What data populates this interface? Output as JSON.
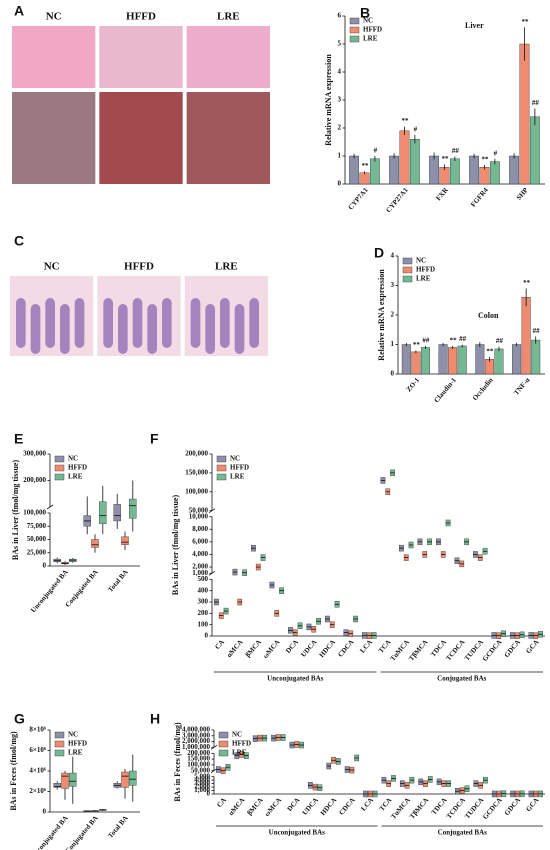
{
  "chart_data": [
    {
      "type": "image",
      "label": "A",
      "columns": [
        "NC",
        "HFFD",
        "LRE"
      ]
    },
    {
      "type": "bar",
      "label": "B",
      "title": "Liver",
      "ylabel": "Relative mRNA expression",
      "categories": [
        "CYP7A1",
        "CYP27A1",
        "FXR",
        "FGFR4",
        "SHP"
      ],
      "ylim": [
        0,
        6
      ],
      "yticks": [
        0,
        1,
        2,
        3,
        4,
        5,
        6
      ],
      "series": [
        {
          "name": "NC",
          "color": "#8e8fa8",
          "values": [
            1,
            1,
            1,
            1,
            1
          ],
          "errors": [
            0.08,
            0.1,
            0.12,
            0.08,
            0.1
          ],
          "annotations": [
            null,
            null,
            null,
            null,
            null
          ]
        },
        {
          "name": "HFFD",
          "color": "#ef8b70",
          "values": [
            0.4,
            1.9,
            0.6,
            0.6,
            5.0
          ],
          "errors": [
            0.05,
            0.15,
            0.1,
            0.08,
            0.6
          ],
          "annotations": [
            "**",
            "**",
            "**",
            "**",
            "**"
          ]
        },
        {
          "name": "LRE",
          "color": "#74b994",
          "values": [
            0.9,
            1.6,
            0.9,
            0.8,
            2.4
          ],
          "errors": [
            0.1,
            0.15,
            0.08,
            0.1,
            0.3
          ],
          "annotations": [
            "#",
            "#",
            "##",
            "#",
            "##"
          ]
        }
      ]
    },
    {
      "type": "image",
      "label": "C",
      "columns": [
        "NC",
        "HFFD",
        "LRE"
      ]
    },
    {
      "type": "bar",
      "label": "D",
      "title": "Colon",
      "ylabel": "Relative mRNA expression",
      "categories": [
        "ZO-1",
        "Claudin-1",
        "Occludin",
        "TNF-α"
      ],
      "ylim": [
        0,
        4
      ],
      "yticks": [
        0,
        1,
        2,
        3,
        4
      ],
      "series": [
        {
          "name": "NC",
          "color": "#8e8fa8",
          "values": [
            1,
            1,
            1,
            1
          ],
          "errors": [
            0.05,
            0.05,
            0.08,
            0.06
          ],
          "annotations": [
            null,
            null,
            null,
            null
          ]
        },
        {
          "name": "HFFD",
          "color": "#ef8b70",
          "values": [
            0.75,
            0.9,
            0.5,
            2.6
          ],
          "errors": [
            0.05,
            0.05,
            0.08,
            0.3
          ],
          "annotations": [
            "**",
            "**",
            "**",
            "**"
          ]
        },
        {
          "name": "LRE",
          "color": "#74b994",
          "values": [
            0.9,
            0.95,
            0.85,
            1.15
          ],
          "errors": [
            0.05,
            0.05,
            0.08,
            0.12
          ],
          "annotations": [
            "##",
            "##",
            "##",
            "##"
          ]
        }
      ]
    },
    {
      "type": "box",
      "label": "E",
      "ylabel": "BAs in Liver (fmol/mg tissue)",
      "categories": [
        "Unconjugated BA",
        "Conjugated BA",
        "Total BA"
      ],
      "axis_segments": [
        {
          "ylim": [
            0,
            100000
          ],
          "yticks": [
            0,
            {
              "value": 25000,
              "label": "25,000"
            },
            {
              "value": 50000,
              "label": "50,000"
            },
            {
              "value": 75000,
              "label": "75,000"
            }
          ]
        },
        {
          "ylim": [
            100000,
            300000
          ],
          "yticks": [
            {
              "value": 100000,
              "label": "100,000"
            },
            {
              "value": 200000,
              "label": "200,000"
            },
            {
              "value": 300000,
              "label": "300,000"
            }
          ]
        }
      ],
      "series": [
        {
          "name": "NC",
          "color": "#8e8fa8",
          "values": [
            [
              5000,
              8000,
              10000,
              13000,
              16000
            ],
            [
              60000,
              75000,
              85000,
              95000,
              140000
            ],
            [
              70000,
              85000,
              95000,
              110000,
              150000
            ]
          ]
        },
        {
          "name": "HFFD",
          "color": "#ef8b70",
          "values": [
            [
              2000,
              4000,
              5000,
              7000,
              9000
            ],
            [
              25000,
              35000,
              40000,
              50000,
              60000
            ],
            [
              30000,
              40000,
              45000,
              55000,
              65000
            ]
          ]
        },
        {
          "name": "LRE",
          "color": "#74b994",
          "values": [
            [
              6000,
              8000,
              11000,
              13000,
              15000
            ],
            [
              60000,
              80000,
              95000,
              120000,
              180000
            ],
            [
              65000,
              90000,
              105000,
              130000,
              200000
            ]
          ]
        }
      ]
    },
    {
      "type": "box",
      "label": "F",
      "ylabel": "BAs in Liver (fmol/mg tissue)",
      "groups": [
        {
          "name": "Unconjugated BAs",
          "categories": [
            "CA",
            "αMCA",
            "βMCA",
            "ωMCA",
            "DCA",
            "UDCA",
            "HDCA",
            "CDCA",
            "LCA"
          ]
        },
        {
          "name": "Conjugated BAs",
          "categories": [
            "TCA",
            "TαMCA",
            "TβMCA",
            "TDCA",
            "TCDCA",
            "TUDCA",
            "GCDCA",
            "GDCA",
            "GCA"
          ]
        }
      ],
      "axis_segments": [
        {
          "ylim": [
            0,
            500
          ],
          "yticks": [
            0,
            100,
            200,
            300,
            400,
            500
          ]
        },
        {
          "ylim": [
            1000,
            10000
          ],
          "yticks": [
            {
              "value": 1000,
              "label": "1,000"
            },
            {
              "value": 2000,
              "label": "2,000"
            },
            {
              "value": 4000,
              "label": "4,000"
            },
            {
              "value": 6000,
              "label": "6,000"
            },
            {
              "value": 8000,
              "label": "8,000"
            },
            {
              "value": 10000,
              "label": "10,000"
            }
          ]
        },
        {
          "ylim": [
            50000,
            200000
          ],
          "yticks": [
            {
              "value": 50000,
              "label": "50,000"
            },
            {
              "value": 100000,
              "label": "100,000"
            },
            {
              "value": 150000,
              "label": "150,000"
            },
            {
              "value": 200000,
              "label": "200,000"
            }
          ]
        }
      ],
      "series": [
        {
          "name": "NC",
          "color": "#8e8fa8",
          "values": [
            300,
            1200,
            5000,
            450,
            50,
            80,
            150,
            30,
            5,
            130000,
            5000,
            6000,
            6000,
            3000,
            4000,
            5,
            5,
            5
          ]
        },
        {
          "name": "HFFD",
          "color": "#ef8b70",
          "values": [
            180,
            300,
            2000,
            200,
            30,
            60,
            100,
            20,
            3,
            100000,
            3500,
            4000,
            4000,
            2500,
            3500,
            3,
            3,
            3
          ]
        },
        {
          "name": "LRE",
          "color": "#74b994",
          "values": [
            220,
            1100,
            3500,
            400,
            90,
            130,
            280,
            150,
            5,
            150000,
            5500,
            6000,
            9000,
            6000,
            4500,
            20,
            10,
            15
          ]
        }
      ]
    },
    {
      "type": "box",
      "label": "G",
      "ylabel": "BAs in Feces (fmol/mg)",
      "categories": [
        "Unconjugated BA",
        "Conjugated BA",
        "Total BA"
      ],
      "ylim": [
        0,
        8000000
      ],
      "yticks": [
        0,
        {
          "value": 2000000,
          "label": "2×10⁶"
        },
        {
          "value": 4000000,
          "label": "4×10⁶"
        },
        {
          "value": 6000000,
          "label": "6×10⁶"
        },
        {
          "value": 8000000,
          "label": "8×10⁶"
        }
      ],
      "series": [
        {
          "name": "NC",
          "color": "#8e8fa8",
          "values": [
            [
              2200000,
              2400000,
              2500000,
              2800000,
              3000000
            ],
            [
              50000,
              80000,
              100000,
              130000,
              150000
            ],
            [
              2300000,
              2400000,
              2600000,
              2800000,
              3000000
            ]
          ]
        },
        {
          "name": "HFFD",
          "color": "#ef8b70",
          "values": [
            [
              1200000,
              2300000,
              3500000,
              3800000,
              4000000
            ],
            [
              60000,
              90000,
              110000,
              140000,
              170000
            ],
            [
              1300000,
              2400000,
              3500000,
              3900000,
              4200000
            ]
          ]
        },
        {
          "name": "LRE",
          "color": "#74b994",
          "values": [
            [
              800000,
              2500000,
              3000000,
              3800000,
              5400000
            ],
            [
              100000,
              150000,
              200000,
              250000,
              300000
            ],
            [
              1000000,
              2600000,
              3200000,
              4000000,
              5600000
            ]
          ]
        }
      ]
    },
    {
      "type": "box",
      "label": "H",
      "ylabel": "BAs in Feces (fmol/mg)",
      "groups": [
        {
          "name": "Unconjugated BAs",
          "categories": [
            "CA",
            "αMCA",
            "βMCA",
            "ωMCA",
            "DCA",
            "UDCA",
            "HDCA",
            "CDCA",
            "LCA"
          ]
        },
        {
          "name": "Conjugated BAs",
          "categories": [
            "TCA",
            "TαMCA",
            "TβMCA",
            "TDCA",
            "TCDCA",
            "TUDCA",
            "GCDCA",
            "GDCA",
            "GCA"
          ]
        }
      ],
      "axis_segments": [
        {
          "ylim": [
            0,
            5000
          ],
          "yticks": [
            0,
            {
              "value": 1000,
              "label": "1,000"
            },
            {
              "value": 2000,
              "label": "2,000"
            },
            {
              "value": 3000,
              "label": "3,000"
            },
            {
              "value": 4000,
              "label": "4,000"
            },
            {
              "value": 5000,
              "label": "5,000"
            }
          ]
        },
        {
          "ylim": [
            50000,
            200000
          ],
          "yticks": [
            {
              "value": 50000,
              "label": "50,000"
            },
            {
              "value": 100000,
              "label": "100,000"
            },
            {
              "value": 150000,
              "label": "150,000"
            },
            {
              "value": 200000,
              "label": "200,000"
            }
          ]
        },
        {
          "ylim": [
            1000000,
            4000000
          ],
          "yticks": [
            {
              "value": 1000000,
              "label": "1,000,000"
            },
            {
              "value": 2000000,
              "label": "2,000,000"
            },
            {
              "value": 3000000,
              "label": "3,000,000"
            },
            {
              "value": 4000000,
              "label": "4,000,000"
            }
          ]
        }
      ],
      "series": [
        {
          "name": "NC",
          "color": "#8e8fa8",
          "values": [
            60000,
            180000,
            2500000,
            2600000,
            1400000,
            2500,
            90000,
            60000,
            10,
            4000,
            3000,
            3500,
            3500,
            800,
            3000,
            20,
            30,
            20
          ]
        },
        {
          "name": "HFFD",
          "color": "#ef8b70",
          "values": [
            50000,
            190000,
            2600000,
            2700000,
            1500000,
            2000,
            140000,
            55000,
            10,
            3000,
            2500,
            3000,
            3000,
            1000,
            2500,
            10,
            20,
            10
          ]
        },
        {
          "name": "LRE",
          "color": "#74b994",
          "values": [
            80000,
            180000,
            2600000,
            2700000,
            1400000,
            1800,
            130000,
            160000,
            10,
            4500,
            4000,
            4200,
            3000,
            1500,
            4000,
            100,
            50,
            30
          ]
        }
      ]
    }
  ]
}
